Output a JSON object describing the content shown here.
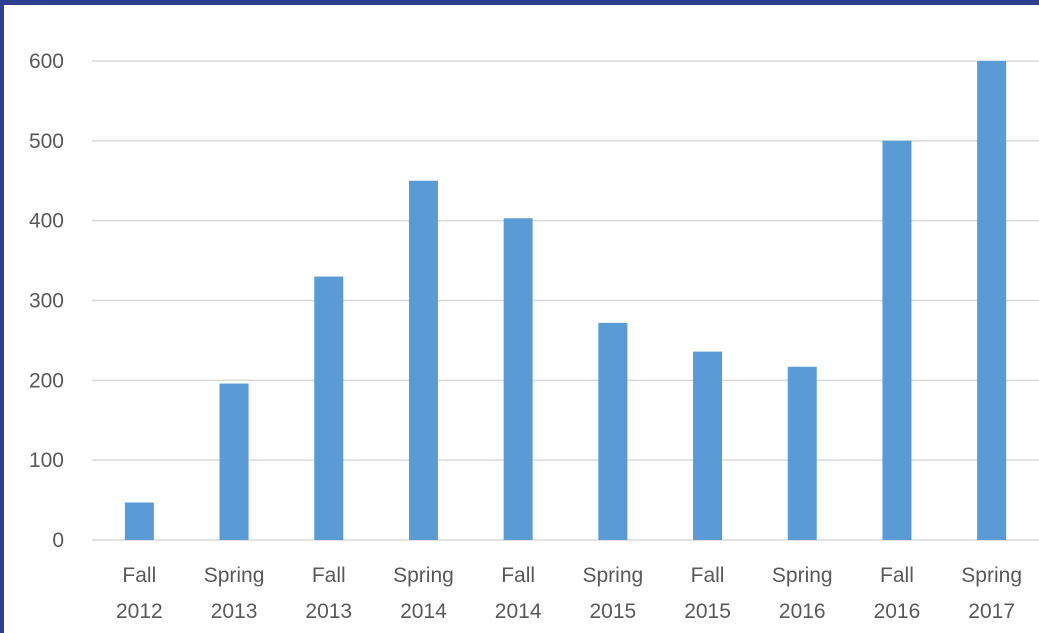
{
  "colors": {
    "frame": "#2e3f92",
    "bar": "#5b9bd5",
    "grid": "#d9d9d9",
    "text": "#595959"
  },
  "chart_data": {
    "type": "bar",
    "categories": [
      [
        "Fall",
        "2012"
      ],
      [
        "Spring",
        "2013"
      ],
      [
        "Fall",
        "2013"
      ],
      [
        "Spring",
        "2014"
      ],
      [
        "Fall",
        "2014"
      ],
      [
        "Spring",
        "2015"
      ],
      [
        "Fall",
        "2015"
      ],
      [
        "Spring",
        "2016"
      ],
      [
        "Fall",
        "2016"
      ],
      [
        "Spring",
        "2017"
      ]
    ],
    "values": [
      47,
      196,
      330,
      450,
      403,
      272,
      236,
      217,
      500,
      600
    ],
    "title": "",
    "xlabel": "",
    "ylabel": "",
    "ylim": [
      0,
      600
    ],
    "yticks": [
      0,
      100,
      200,
      300,
      400,
      500,
      600
    ],
    "grid": true,
    "legend": "none"
  }
}
